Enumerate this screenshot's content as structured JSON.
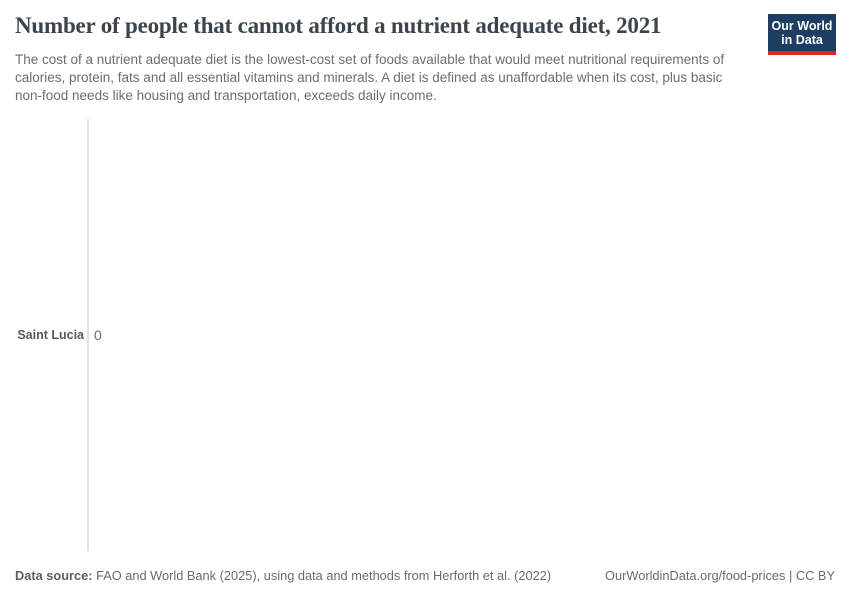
{
  "header": {
    "title": "Number of people that cannot afford a nutrient adequate diet, 2021",
    "subtitle": "The cost of a nutrient adequate diet is the lowest-cost set of foods available that would meet nutritional requirements of calories, protein, fats and all essential vitamins and minerals. A diet is defined as unaffordable when its cost, plus basic non-food needs like housing and transportation, exceeds daily income.",
    "logo": {
      "line1": "Our World",
      "line2": "in Data"
    }
  },
  "chart_data": {
    "type": "bar",
    "orientation": "horizontal",
    "categories": [
      "Saint Lucia"
    ],
    "values": [
      0
    ],
    "value_labels": [
      "0"
    ],
    "title": "Number of people that cannot afford a nutrient adequate diet, 2021",
    "xlabel": "",
    "ylabel": "",
    "xlim": [
      0,
      1
    ],
    "grid": false,
    "legend": false
  },
  "footer": {
    "datasource_label": "Data source:",
    "datasource_text": " FAO and World Bank (2025), using data and methods from Herforth et al. (2022)",
    "link_text": "OurWorldinData.org/food-prices | CC BY"
  },
  "colors": {
    "logo_background": "#1d3d63",
    "logo_accent": "#d7282f",
    "title_text": "#3d454c",
    "subtitle_text": "#6d6d6d",
    "axis_line": "#e3e3e3",
    "entity_label_text": "#55595e",
    "value_label_text": "#6b6b6b",
    "footer_text": "#6b6b6b",
    "background": "#ffffff"
  }
}
